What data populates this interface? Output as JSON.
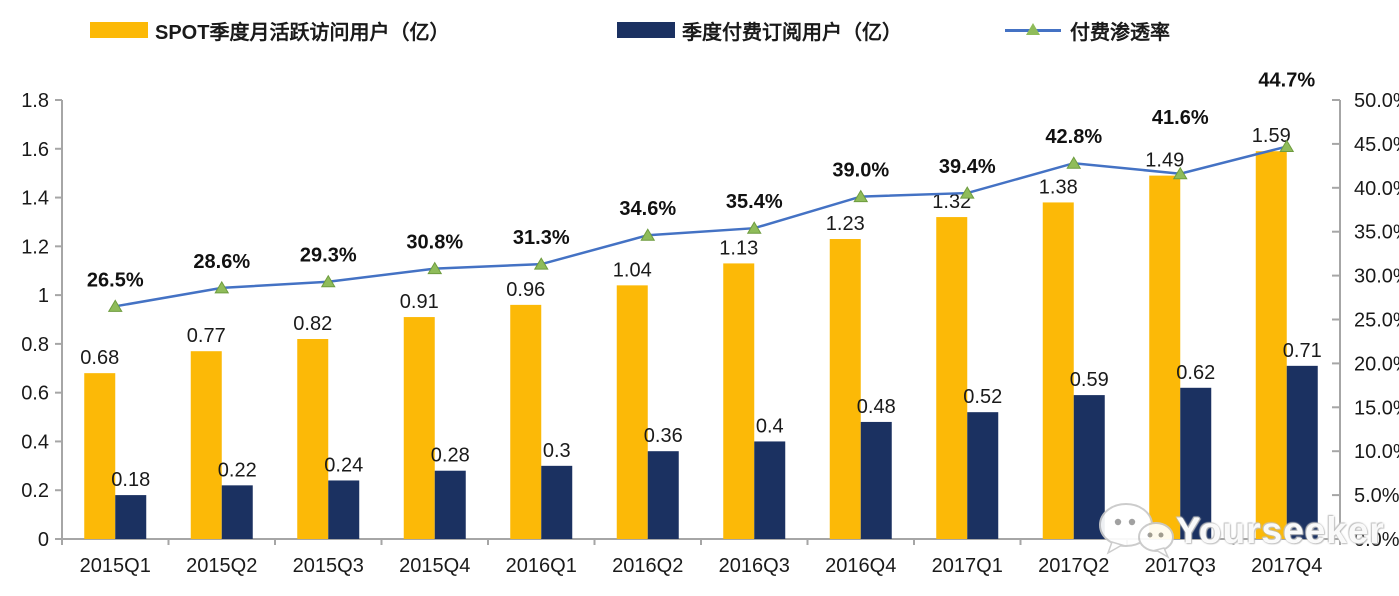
{
  "legend": {
    "items": [
      {
        "label": "SPOT季度月活跃访问用户（亿）",
        "type": "bar",
        "color": "#FCB907"
      },
      {
        "label": "季度付费订阅用户（亿）",
        "type": "bar",
        "color": "#1B3161"
      },
      {
        "label": "付费渗透率",
        "type": "line",
        "color": "#4472C4",
        "marker_color": "#8FBC5A"
      }
    ]
  },
  "chart_data": {
    "type": "bar",
    "subtype": "combo-bar-line-dual-axis",
    "categories": [
      "2015Q1",
      "2015Q2",
      "2015Q3",
      "2015Q4",
      "2016Q1",
      "2016Q2",
      "2016Q3",
      "2016Q4",
      "2017Q1",
      "2017Q2",
      "2017Q3",
      "2017Q4"
    ],
    "series": [
      {
        "name": "SPOT季度月活跃访问用户（亿）",
        "type": "bar",
        "axis": "left",
        "color": "#FCB907",
        "values": [
          0.68,
          0.77,
          0.82,
          0.91,
          0.96,
          1.04,
          1.13,
          1.23,
          1.32,
          1.38,
          1.49,
          1.59
        ],
        "value_labels": [
          "0.68",
          "0.77",
          "0.82",
          "0.91",
          "0.96",
          "1.04",
          "1.13",
          "1.23",
          "1.32",
          "1.38",
          "1.49",
          "1.59"
        ]
      },
      {
        "name": "季度付费订阅用户（亿）",
        "type": "bar",
        "axis": "left",
        "color": "#1B3161",
        "values": [
          0.18,
          0.22,
          0.24,
          0.28,
          0.3,
          0.36,
          0.4,
          0.48,
          0.52,
          0.59,
          0.62,
          0.71
        ],
        "value_labels": [
          "0.18",
          "0.22",
          "0.24",
          "0.28",
          "0.3",
          "0.36",
          "0.4",
          "0.48",
          "0.52",
          "0.59",
          "0.62",
          "0.71"
        ]
      },
      {
        "name": "付费渗透率",
        "type": "line",
        "axis": "right",
        "color": "#4472C4",
        "marker": "triangle",
        "marker_color": "#8FBC5A",
        "marker_edge_color": "#6E9C3F",
        "values": [
          26.5,
          28.6,
          29.3,
          30.8,
          31.3,
          34.6,
          35.4,
          39.0,
          39.4,
          42.8,
          41.6,
          44.7
        ],
        "value_labels": [
          "26.5%",
          "28.6%",
          "29.3%",
          "30.8%",
          "31.3%",
          "34.6%",
          "35.4%",
          "39.0%",
          "39.4%",
          "42.8%",
          "41.6%",
          "44.7%"
        ]
      }
    ],
    "left_axis": {
      "min": 0,
      "max": 1.8,
      "step": 0.2,
      "ticks": [
        "0",
        "0.2",
        "0.4",
        "0.6",
        "0.8",
        "1",
        "1.2",
        "1.4",
        "1.6",
        "1.8"
      ]
    },
    "right_axis": {
      "min": 0,
      "max": 50,
      "step": 5,
      "ticks": [
        "0.0%",
        "5.0%",
        "10.0%",
        "15.0%",
        "20.0%",
        "25.0%",
        "30.0%",
        "35.0%",
        "40.0%",
        "45.0%",
        "50.0%"
      ]
    },
    "grid": false,
    "legend_position": "top",
    "title": ""
  },
  "watermark": {
    "text": "Yourseeker",
    "icon": "wechat-chat-bubbles"
  },
  "colors": {
    "axis_line": "#A6A6A6",
    "tick_text": "#1a1a1a",
    "value_label": "#1a1a1a",
    "pct_label": "#111111"
  }
}
